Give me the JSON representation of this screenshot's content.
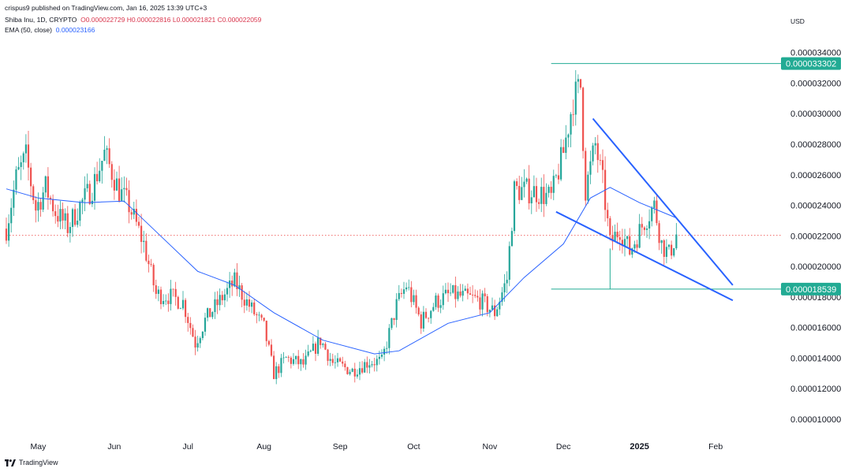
{
  "header": {
    "published_line": "crispus9 published on TradingView.com, Jan 16, 2025 13:39 UTC+3",
    "symbol": "Shiba Inu, 1D, CRYPTO",
    "ohlc": {
      "open": "O0.000022729",
      "high": "H0.000022816",
      "low": "L0.000021821",
      "close": "C0.000022059"
    },
    "ema_label": "EMA (50, close)",
    "ema_value": "0.000023166",
    "currency": "USD"
  },
  "footer": {
    "brand": "TradingView",
    "logo_icon": "tradingview-logo-icon"
  },
  "colors": {
    "up": "#26a69a",
    "down": "#ef5350",
    "ema": "#2962ff",
    "trendline": "#2962ff",
    "level": "#22ab94",
    "current_price_line": "#ef5350"
  },
  "chart_data": {
    "type": "candlestick",
    "title": "",
    "x_ticks": [
      "May",
      "Jun",
      "Jul",
      "Aug",
      "Sep",
      "Oct",
      "Nov",
      "Dec",
      "2025",
      "Feb"
    ],
    "y_ticks": [
      "0.000034000",
      "0.000032000",
      "0.000030000",
      "0.000028000",
      "0.000026000",
      "0.000024000",
      "0.000022000",
      "0.000020000",
      "0.000018000",
      "0.000016000",
      "0.000014000",
      "0.000012000",
      "0.000010000"
    ],
    "ylim": [
      9.2e-06,
      3.54e-05
    ],
    "x_range": [
      "2024-04-18",
      "2025-02-18"
    ],
    "grid": false,
    "series": [
      {
        "name": "Shiba Inu",
        "kind": "ohlc_close_waypoints",
        "points": [
          [
            "2024-04-18",
            2.25e-05
          ],
          [
            "2024-04-22",
            2.58e-05
          ],
          [
            "2024-04-26",
            2.72e-05
          ],
          [
            "2024-04-30",
            2.38e-05
          ],
          [
            "2024-05-04",
            2.52e-05
          ],
          [
            "2024-05-08",
            2.36e-05
          ],
          [
            "2024-05-13",
            2.26e-05
          ],
          [
            "2024-05-18",
            2.4e-05
          ],
          [
            "2024-05-23",
            2.52e-05
          ],
          [
            "2024-05-28",
            2.74e-05
          ],
          [
            "2024-06-03",
            2.5e-05
          ],
          [
            "2024-06-07",
            2.4e-05
          ],
          [
            "2024-06-13",
            2.15e-05
          ],
          [
            "2024-06-18",
            1.82e-05
          ],
          [
            "2024-06-23",
            1.81e-05
          ],
          [
            "2024-06-29",
            1.77e-05
          ],
          [
            "2024-07-04",
            1.5e-05
          ],
          [
            "2024-07-08",
            1.65e-05
          ],
          [
            "2024-07-15",
            1.8e-05
          ],
          [
            "2024-07-20",
            1.9e-05
          ],
          [
            "2024-07-25",
            1.77e-05
          ],
          [
            "2024-08-01",
            1.6e-05
          ],
          [
            "2024-08-05",
            1.3e-05
          ],
          [
            "2024-08-10",
            1.4e-05
          ],
          [
            "2024-08-17",
            1.36e-05
          ],
          [
            "2024-08-24",
            1.52e-05
          ],
          [
            "2024-08-29",
            1.37e-05
          ],
          [
            "2024-09-06",
            1.32e-05
          ],
          [
            "2024-09-13",
            1.38e-05
          ],
          [
            "2024-09-18",
            1.38e-05
          ],
          [
            "2024-09-24",
            1.75e-05
          ],
          [
            "2024-09-28",
            1.88e-05
          ],
          [
            "2024-10-04",
            1.64e-05
          ],
          [
            "2024-10-10",
            1.77e-05
          ],
          [
            "2024-10-16",
            1.82e-05
          ],
          [
            "2024-10-22",
            1.8e-05
          ],
          [
            "2024-10-28",
            1.78e-05
          ],
          [
            "2024-11-03",
            1.7e-05
          ],
          [
            "2024-11-08",
            1.92e-05
          ],
          [
            "2024-11-11",
            2.5e-05
          ],
          [
            "2024-11-15",
            2.5e-05
          ],
          [
            "2024-11-20",
            2.49e-05
          ],
          [
            "2024-11-26",
            2.45e-05
          ],
          [
            "2024-12-01",
            2.75e-05
          ],
          [
            "2024-12-05",
            3.1e-05
          ],
          [
            "2024-12-08",
            3.18e-05
          ],
          [
            "2024-12-10",
            2.5e-05
          ],
          [
            "2024-12-14",
            2.8e-05
          ],
          [
            "2024-12-17",
            2.55e-05
          ],
          [
            "2024-12-20",
            2.15e-05
          ],
          [
            "2024-12-24",
            2.25e-05
          ],
          [
            "2024-12-28",
            2.1e-05
          ],
          [
            "2025-01-03",
            2.3e-05
          ],
          [
            "2025-01-07",
            2.4e-05
          ],
          [
            "2025-01-10",
            2.15e-05
          ],
          [
            "2025-01-13",
            2.08e-05
          ],
          [
            "2025-01-16",
            2.21e-05
          ]
        ]
      },
      {
        "name": "EMA (50, close)",
        "kind": "line",
        "points": [
          [
            "2024-04-18",
            2.51e-05
          ],
          [
            "2024-05-01",
            2.45e-05
          ],
          [
            "2024-05-20",
            2.42e-05
          ],
          [
            "2024-06-05",
            2.43e-05
          ],
          [
            "2024-06-20",
            2.2e-05
          ],
          [
            "2024-07-05",
            1.97e-05
          ],
          [
            "2024-07-20",
            1.88e-05
          ],
          [
            "2024-08-05",
            1.7e-05
          ],
          [
            "2024-08-25",
            1.52e-05
          ],
          [
            "2024-09-15",
            1.43e-05
          ],
          [
            "2024-09-25",
            1.45e-05
          ],
          [
            "2024-10-15",
            1.63e-05
          ],
          [
            "2024-11-01",
            1.7e-05
          ],
          [
            "2024-11-15",
            1.93e-05
          ],
          [
            "2024-12-01",
            2.15e-05
          ],
          [
            "2024-12-12",
            2.45e-05
          ],
          [
            "2024-12-20",
            2.52e-05
          ],
          [
            "2025-01-01",
            2.42e-05
          ],
          [
            "2025-01-16",
            2.32e-05
          ]
        ]
      }
    ],
    "annotations": [
      {
        "type": "horizontal_level",
        "label": "0.000033302",
        "value": 3.3302e-05,
        "from": "2024-11-26",
        "color": "#22ab94"
      },
      {
        "type": "horizontal_level",
        "label": "0.000018539",
        "value": 1.8539e-05,
        "from": "2024-11-26",
        "color": "#22ab94"
      },
      {
        "type": "price_line",
        "value": 2.2059e-05,
        "color": "#ef5350",
        "style": "dotted"
      },
      {
        "type": "trendline",
        "points": [
          [
            "2024-12-13",
            2.97e-05
          ],
          [
            "2025-02-08",
            1.88e-05
          ]
        ]
      },
      {
        "type": "trendline",
        "points": [
          [
            "2024-11-28",
            2.36e-05
          ],
          [
            "2025-02-08",
            1.78e-05
          ]
        ]
      },
      {
        "type": "vertical_marker",
        "date": "2024-12-20",
        "from": 2.12e-05,
        "to": 1.8539e-05
      }
    ]
  }
}
